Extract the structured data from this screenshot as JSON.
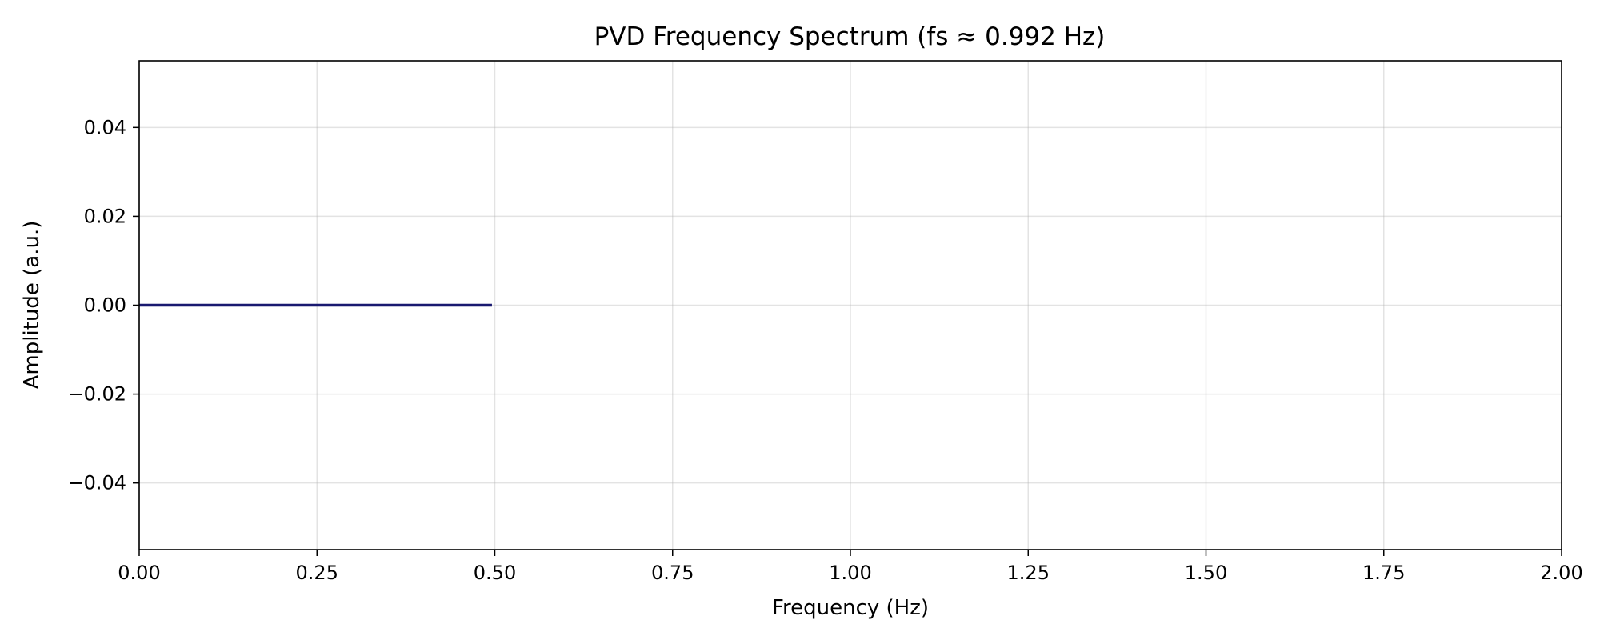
{
  "chart_data": {
    "type": "line",
    "title": "PVD Frequency Spectrum (fs ≈ 0.992 Hz)",
    "xlabel": "Frequency (Hz)",
    "ylabel": "Amplitude (a.u.)",
    "xlim": [
      0,
      2.0
    ],
    "ylim": [
      -0.055,
      0.055
    ],
    "x_ticks": [
      0,
      0.25,
      0.5,
      0.75,
      1.0,
      1.25,
      1.5,
      1.75,
      2.0
    ],
    "x_tick_labels": [
      "0.00",
      "0.25",
      "0.50",
      "0.75",
      "1.00",
      "1.25",
      "1.50",
      "1.75",
      "2.00"
    ],
    "y_ticks": [
      0.04,
      0.02,
      0.0,
      -0.02,
      -0.04
    ],
    "y_tick_labels": [
      "0.04",
      "0.02",
      "0.00",
      "−0.02",
      "−0.04"
    ],
    "grid": true,
    "series": [
      {
        "color": "#191970",
        "x": [
          0.0,
          0.1,
          0.2,
          0.3,
          0.4,
          0.496
        ],
        "y": [
          0,
          0,
          0,
          0,
          0,
          0
        ]
      }
    ]
  }
}
